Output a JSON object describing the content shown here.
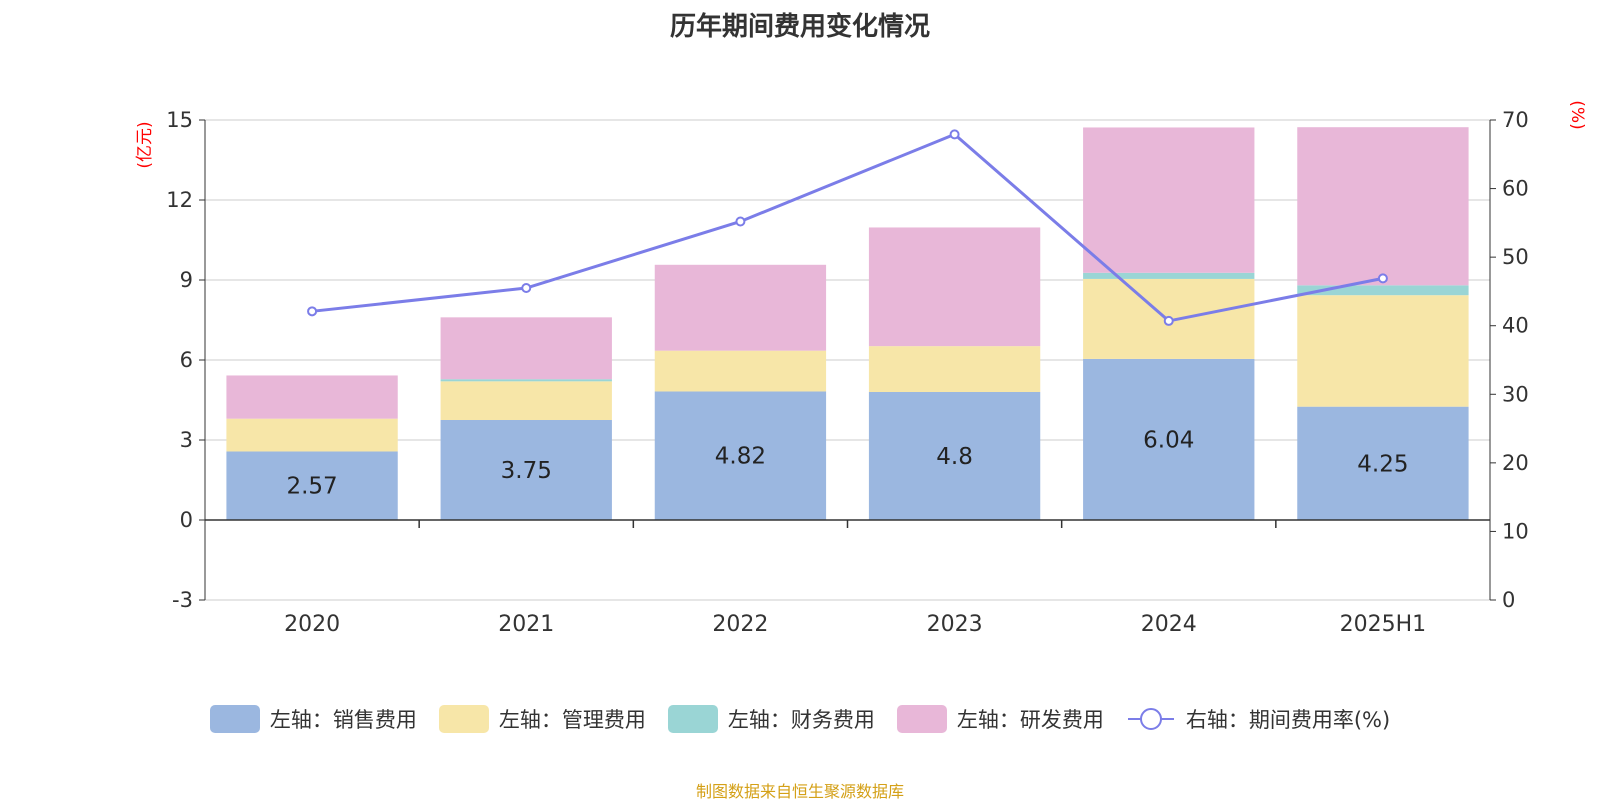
{
  "title": "历年期间费用变化情况",
  "footer": "制图数据来自恒生聚源数据库",
  "chart_data": {
    "type": "bar",
    "stacked": true,
    "title": "历年期间费用变化情况",
    "categories": [
      "2020",
      "2021",
      "2022",
      "2023",
      "2024",
      "2025H1"
    ],
    "y_left": {
      "unit_label": "(亿元)",
      "ylim": [
        -3,
        15
      ],
      "ticks": [
        -3,
        0,
        3,
        6,
        9,
        12,
        15
      ]
    },
    "y_right": {
      "unit_label": "(%)",
      "ylim": [
        0,
        70
      ],
      "ticks": [
        0,
        10,
        20,
        30,
        40,
        50,
        60,
        70
      ]
    },
    "grid": true,
    "legend_position": "bottom",
    "series": [
      {
        "name": "左轴：销售费用",
        "axis": "left",
        "type": "bar",
        "color": "#9bb7e0",
        "values": [
          2.57,
          3.75,
          4.82,
          4.8,
          6.04,
          4.25
        ],
        "data_labels": [
          "2.57",
          "3.75",
          "4.82",
          "4.8",
          "6.04",
          "4.25"
        ]
      },
      {
        "name": "左轴：管理费用",
        "axis": "left",
        "type": "bar",
        "color": "#f7e6a8",
        "values": [
          1.23,
          1.45,
          1.53,
          1.72,
          3.0,
          4.18
        ]
      },
      {
        "name": "左轴：财务费用",
        "axis": "left",
        "type": "bar",
        "color": "#9ad5d5",
        "values": [
          0.0,
          0.08,
          0.0,
          0.0,
          0.23,
          0.37
        ]
      },
      {
        "name": "左轴：研发费用",
        "axis": "left",
        "type": "bar",
        "color": "#e8b7d8",
        "values": [
          1.62,
          2.32,
          3.22,
          4.45,
          5.45,
          5.93
        ]
      },
      {
        "name": "右轴：期间费用率(%)",
        "axis": "right",
        "type": "line",
        "color": "#7b7de8",
        "values": [
          42.1,
          45.5,
          55.2,
          67.9,
          40.7,
          46.9
        ]
      }
    ]
  }
}
